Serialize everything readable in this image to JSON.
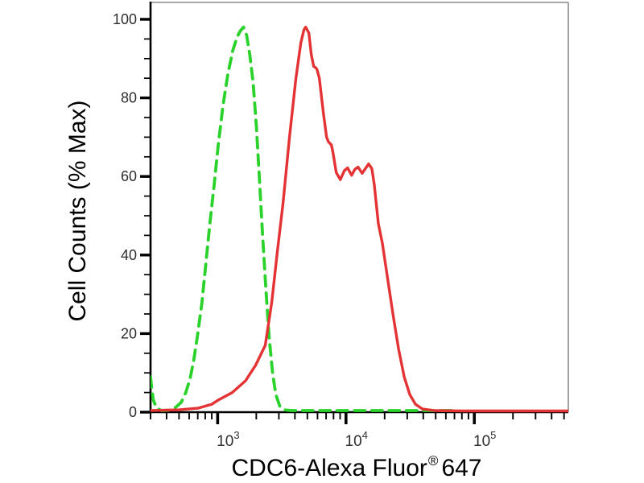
{
  "axes": {
    "y_label": "Cell Counts (% Max)",
    "x_label_prefix": "CDC6-Alexa Fluor",
    "x_label_reg": "®",
    "x_label_suffix": "647"
  },
  "colors": {
    "green_series": "#2bd22b",
    "red_series": "#e43335",
    "spine_dark": "#000000",
    "spine_light": "#8a8a8a",
    "tick_label": "#2e2e2e"
  },
  "chart_data": {
    "type": "line",
    "title": "",
    "xlabel": "CDC6-Alexa Fluor® 647",
    "ylabel": "Cell Counts (% Max)",
    "x_scale": "log",
    "x_min": 300,
    "x_max": 540000,
    "y_min": 0,
    "y_max": 104.3,
    "grid": false,
    "legend_position": "none",
    "x_major_ticks": [
      {
        "value": 1000,
        "base": "10",
        "exp": "3"
      },
      {
        "value": 10000,
        "base": "10",
        "exp": "4"
      },
      {
        "value": 100000,
        "base": "10",
        "exp": "5"
      }
    ],
    "x_minor_ticks": [
      300,
      400,
      500,
      600,
      700,
      800,
      900,
      2000,
      3000,
      4000,
      5000,
      6000,
      7000,
      8000,
      9000,
      20000,
      30000,
      40000,
      50000,
      60000,
      70000,
      80000,
      90000,
      200000,
      300000,
      400000,
      500000
    ],
    "y_major_ticks": [
      0,
      20,
      40,
      60,
      80,
      100
    ],
    "y_minor_ticks": [
      5,
      10,
      15,
      25,
      30,
      35,
      45,
      50,
      55,
      65,
      70,
      75,
      85,
      90,
      95
    ],
    "series": [
      {
        "name": "control-green-dashed",
        "style": "dashed",
        "color": "#2bd22b",
        "points": [
          [
            300,
            9
          ],
          [
            308,
            5.5
          ],
          [
            316,
            3
          ],
          [
            335,
            1
          ],
          [
            365,
            0.4
          ],
          [
            420,
            0.5
          ],
          [
            470,
            1.2
          ],
          [
            520,
            2.5
          ],
          [
            565,
            5
          ],
          [
            610,
            8.5
          ],
          [
            650,
            13
          ],
          [
            700,
            20
          ],
          [
            755,
            28
          ],
          [
            810,
            38
          ],
          [
            870,
            48
          ],
          [
            940,
            58
          ],
          [
            1010,
            68
          ],
          [
            1100,
            78
          ],
          [
            1200,
            86
          ],
          [
            1310,
            92
          ],
          [
            1420,
            95.5
          ],
          [
            1500,
            97
          ],
          [
            1590,
            98
          ],
          [
            1680,
            96
          ],
          [
            1780,
            91
          ],
          [
            1890,
            84
          ],
          [
            2000,
            73
          ],
          [
            2110,
            60
          ],
          [
            2240,
            45
          ],
          [
            2380,
            31
          ],
          [
            2520,
            19
          ],
          [
            2680,
            10
          ],
          [
            2840,
            4.5
          ],
          [
            3050,
            1.5
          ],
          [
            3300,
            0.6
          ],
          [
            3700,
            0.4
          ],
          [
            5000,
            0.4
          ],
          [
            8000,
            0.4
          ],
          [
            15000,
            0.4
          ],
          [
            30000,
            0.4
          ],
          [
            50000,
            0.4
          ],
          [
            70000,
            0.4
          ]
        ]
      },
      {
        "name": "cdc6-red-solid",
        "style": "solid",
        "color": "#e43335",
        "points": [
          [
            300,
            0.4
          ],
          [
            500,
            0.6
          ],
          [
            700,
            1
          ],
          [
            900,
            2
          ],
          [
            1000,
            3
          ],
          [
            1300,
            5
          ],
          [
            1650,
            8
          ],
          [
            1980,
            12
          ],
          [
            2350,
            17
          ],
          [
            2640,
            28
          ],
          [
            2920,
            41
          ],
          [
            3230,
            53
          ],
          [
            3630,
            70
          ],
          [
            4070,
            85
          ],
          [
            4450,
            94
          ],
          [
            4700,
            97.3
          ],
          [
            4850,
            98
          ],
          [
            5140,
            96.5
          ],
          [
            5370,
            91
          ],
          [
            5600,
            88
          ],
          [
            5800,
            87.7
          ],
          [
            5940,
            87.3
          ],
          [
            6200,
            85
          ],
          [
            6670,
            76
          ],
          [
            7060,
            70
          ],
          [
            7300,
            68.8
          ],
          [
            7700,
            68
          ],
          [
            7930,
            66
          ],
          [
            8400,
            61
          ],
          [
            9040,
            59.2
          ],
          [
            9720,
            61.5
          ],
          [
            10290,
            62.2
          ],
          [
            11070,
            60.3
          ],
          [
            11730,
            61.8
          ],
          [
            12420,
            62.4
          ],
          [
            13360,
            60.8
          ],
          [
            14160,
            62
          ],
          [
            15000,
            63.2
          ],
          [
            15900,
            62
          ],
          [
            16600,
            58
          ],
          [
            17860,
            48
          ],
          [
            19200,
            43
          ],
          [
            20900,
            35
          ],
          [
            23200,
            25
          ],
          [
            25700,
            16
          ],
          [
            28400,
            9
          ],
          [
            31400,
            4.5
          ],
          [
            34800,
            2
          ],
          [
            39500,
            0.8
          ],
          [
            49000,
            0.4
          ],
          [
            80000,
            0.3
          ],
          [
            150000,
            0.3
          ],
          [
            300000,
            0.3
          ],
          [
            540000,
            0.3
          ]
        ]
      }
    ]
  }
}
